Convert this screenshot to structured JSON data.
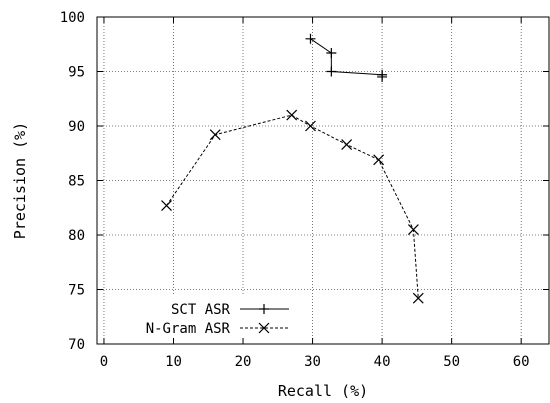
{
  "chart_data": {
    "type": "line",
    "title": "",
    "xlabel": "Recall (%)",
    "ylabel": "Precision (%)",
    "xlim": [
      -1,
      64
    ],
    "ylim": [
      70,
      100
    ],
    "xticks": [
      0,
      10,
      20,
      30,
      40,
      50,
      60
    ],
    "yticks": [
      70,
      75,
      80,
      85,
      90,
      95,
      100
    ],
    "grid": true,
    "legend_position": "bottom-left",
    "series": [
      {
        "name": "SCT ASR",
        "marker": "plus",
        "line_style": "solid",
        "color": "#000000",
        "x": [
          29.7,
          32.7,
          32.7,
          40.0,
          40.0
        ],
        "y": [
          98.0,
          96.7,
          95.0,
          94.7,
          94.5
        ]
      },
      {
        "name": "N-Gram ASR",
        "marker": "cross",
        "line_style": "dashed",
        "color": "#000000",
        "x": [
          9.0,
          16.0,
          27.0,
          29.7,
          34.9,
          39.5,
          44.5,
          45.2
        ],
        "y": [
          82.7,
          89.2,
          91.0,
          90.0,
          88.3,
          86.9,
          80.5,
          74.2
        ]
      }
    ]
  }
}
